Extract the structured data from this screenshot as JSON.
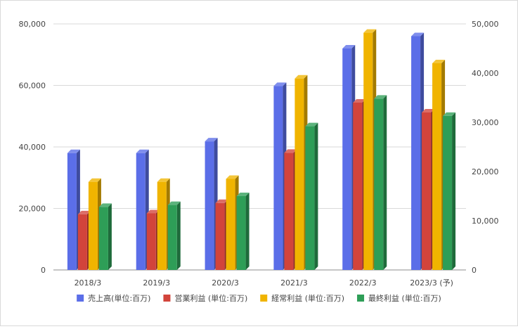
{
  "chart_data": {
    "type": "bar",
    "render": "3d-clustered-bar",
    "categories": [
      "2018/3",
      "2019/3",
      "2020/3",
      "2021/3",
      "2022/3",
      "2023/3 (予)"
    ],
    "series": [
      {
        "name": "売上高(単位:百万)",
        "axis": "left",
        "color": "#5B6EE8",
        "values": [
          38000,
          38000,
          41800,
          59800,
          72000,
          76000
        ]
      },
      {
        "name": "営業利益 (単位:百万)",
        "axis": "right",
        "color": "#D2443B",
        "values": [
          11300,
          11500,
          13600,
          23800,
          34000,
          32000
        ]
      },
      {
        "name": "経常利益 (単位:百万)",
        "axis": "right",
        "color": "#F0B400",
        "values": [
          17900,
          17900,
          18500,
          38900,
          48200,
          42000
        ]
      },
      {
        "name": "最終利益 (単位:百万)",
        "axis": "right",
        "color": "#2E9E57",
        "values": [
          12800,
          13200,
          15000,
          29200,
          34800,
          31300
        ]
      }
    ],
    "y_left": {
      "ylim": [
        0,
        80000
      ],
      "ticks": [
        0,
        20000,
        40000,
        60000,
        80000
      ],
      "tick_labels": [
        "0",
        "20,000",
        "40,000",
        "60,000",
        "80,000"
      ]
    },
    "y_right": {
      "ylim": [
        0,
        50000
      ],
      "ticks": [
        0,
        10000,
        20000,
        30000,
        40000,
        50000
      ],
      "tick_labels": [
        "0",
        "10,000",
        "20,000",
        "30,000",
        "40,000",
        "50,000"
      ]
    },
    "grid": true,
    "legend_position": "bottom",
    "title": "",
    "xlabel": "",
    "ylabel": ""
  }
}
